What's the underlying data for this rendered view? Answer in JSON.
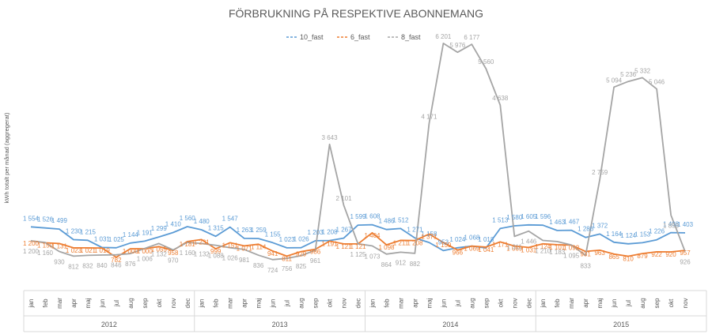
{
  "chart_data": {
    "type": "line",
    "title": "FÖRBRUKNING PÅ RESPEKTIVE ABONNEMANG",
    "ylabel": "kWh totalt per månad (aggregerat)",
    "xlabel": "",
    "legend_position": "top-center",
    "grid": false,
    "ylim": [
      0,
      6500
    ],
    "months": [
      "jan",
      "feb",
      "mar",
      "apr",
      "maj",
      "jun",
      "jul",
      "aug",
      "sep",
      "okt",
      "nov",
      "dec"
    ],
    "years": [
      "2012",
      "2013",
      "2014",
      "2015"
    ],
    "x_labels": [
      "jan",
      "feb",
      "mar",
      "apr",
      "maj",
      "jun",
      "jul",
      "aug",
      "sep",
      "okt",
      "nov",
      "dec",
      "jan",
      "feb",
      "mar",
      "apr",
      "maj",
      "jun",
      "jul",
      "aug",
      "sep",
      "okt",
      "nov",
      "dec",
      "jan",
      "feb",
      "mar",
      "apr",
      "maj",
      "jun",
      "jul",
      "aug",
      "sep",
      "okt",
      "nov",
      "dec",
      "jan",
      "feb",
      "mar",
      "apr",
      "maj",
      "jun",
      "jul",
      "aug",
      "sep",
      "okt",
      "nov"
    ],
    "series": [
      {
        "name": "10_fast",
        "color": "#5B9BD5",
        "values": [
          1554,
          1526,
          1499,
          1230,
          1215,
          1031,
          1025,
          1144,
          1191,
          1299,
          1410,
          1560,
          1480,
          1315,
          1547,
          1263,
          1259,
          1155,
          1023,
          1026,
          1203,
          1208,
          1267,
          1599,
          1608,
          1486,
          1512,
          1271,
          1158,
          953,
          1024,
          1068,
          1018,
          1513,
          1580,
          1605,
          1596,
          1463,
          1467,
          1286,
          1372,
          1164,
          1124,
          1153,
          1226,
          1408,
          1403
        ]
      },
      {
        "name": "6_fast",
        "color": "#ED7D31",
        "values": [
          1200,
          1150,
          1131,
          1023,
          1021,
          1019,
          782,
          1000,
          1000,
          1055,
          958,
          1181,
          1231,
          999,
          1151,
          1071,
          1114,
          941,
          811,
          929,
          986,
          1191,
          1121,
          1121,
          1404,
          1098,
          1211,
          1208,
          1371,
          1159,
          966,
          1069,
          1041,
          1171,
          1069,
          1031,
          1124,
          1101,
          1092,
          931,
          963,
          865,
          810,
          879,
          922,
          920,
          957
        ]
      },
      {
        "name": "8_fast",
        "color": "#A5A5A5",
        "values": [
          1200,
          1160,
          930,
          812,
          832,
          840,
          846,
          876,
          1006,
          1132,
          970,
          1160,
          1132,
          1088,
          1026,
          981,
          836,
          724,
          756,
          825,
          961,
          3643,
          2101,
          1125,
          1073,
          864,
          912,
          882,
          4171,
          6201,
          5976,
          6177,
          5560,
          4638,
          1311,
          1446,
          1210,
          1183,
          1095,
          833,
          2759,
          5094,
          5236,
          5332,
          5046,
          1853,
          926
        ]
      }
    ]
  }
}
